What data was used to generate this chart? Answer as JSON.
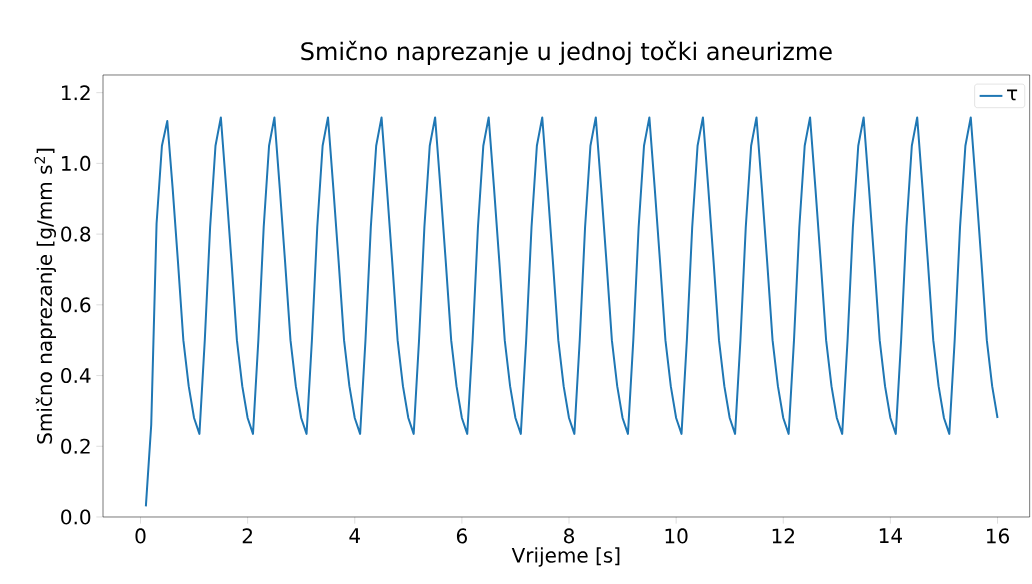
{
  "chart_data": {
    "type": "line",
    "title": "Smično naprezanje u jednoj točki aneurizme",
    "xlabel": "Vrijeme [s]",
    "ylabel": "Smično naprezanje [g/mm s$^{2}$]",
    "xlim": [
      -0.7,
      16.6
    ],
    "ylim": [
      0,
      1.25
    ],
    "xticks": [
      0,
      2,
      4,
      6,
      8,
      10,
      12,
      14,
      16
    ],
    "yticks": [
      {
        "value": 0,
        "label": "0.0"
      },
      {
        "value": 0.2,
        "label": "0.2"
      },
      {
        "value": 0.4,
        "label": "0.4"
      },
      {
        "value": 0.6,
        "label": "0.6"
      },
      {
        "value": 0.8,
        "label": "0.8"
      },
      {
        "value": 1.0,
        "label": "1.0"
      },
      {
        "value": 1.2,
        "label": "1.2"
      }
    ],
    "grid": false,
    "legend": "top right",
    "x": [
      0.1,
      0.2,
      0.3,
      0.4,
      0.5,
      0.6,
      0.7,
      0.8,
      0.9,
      1.0,
      1.1,
      1.2,
      1.3,
      1.4,
      1.5,
      1.6,
      1.7,
      1.8,
      1.9,
      2.0,
      2.1,
      2.2,
      2.3,
      2.4,
      2.5,
      2.6,
      2.7,
      2.8,
      2.9,
      3.0,
      3.1,
      3.2,
      3.3,
      3.4,
      3.5,
      3.6,
      3.7,
      3.8,
      3.9,
      4.0,
      4.1,
      4.2,
      4.3,
      4.4,
      4.5,
      4.6,
      4.7,
      4.8,
      4.9,
      5.0,
      5.1,
      5.2,
      5.3,
      5.4,
      5.5,
      5.6,
      5.7,
      5.8,
      5.9,
      6.0,
      6.1,
      6.2,
      6.3,
      6.4,
      6.5,
      6.6,
      6.7,
      6.8,
      6.9,
      7.0,
      7.1,
      7.2,
      7.3,
      7.4,
      7.5,
      7.6,
      7.7,
      7.8,
      7.9,
      8.0,
      8.1,
      8.2,
      8.3,
      8.4,
      8.5,
      8.6,
      8.7,
      8.8,
      8.9,
      9.0,
      9.1,
      9.2,
      9.3,
      9.4,
      9.5,
      9.6,
      9.7,
      9.8,
      9.9,
      10.0,
      10.1,
      10.2,
      10.3,
      10.4,
      10.5,
      10.6,
      10.7,
      10.8,
      10.9,
      11.0,
      11.1,
      11.2,
      11.3,
      11.4,
      11.5,
      11.6,
      11.7,
      11.8,
      11.9,
      12.0,
      12.1,
      12.2,
      12.3,
      12.4,
      12.5,
      12.6,
      12.7,
      12.8,
      12.9,
      13.0,
      13.1,
      13.2,
      13.3,
      13.4,
      13.5,
      13.6,
      13.7,
      13.8,
      13.9,
      14.0,
      14.1,
      14.2,
      14.3,
      14.4,
      14.5,
      14.6,
      14.7,
      14.8,
      14.9,
      15.0,
      15.1,
      15.2,
      15.3,
      15.4,
      15.5,
      15.6,
      15.7,
      15.8,
      15.9,
      16.0
    ],
    "series": [
      {
        "name": "τ",
        "color": "#1f77b4",
        "values": [
          0.03,
          0.26,
          0.83,
          1.05,
          1.12,
          0.93,
          0.72,
          0.5,
          0.37,
          0.28,
          0.235,
          0.5,
          0.82,
          1.05,
          1.13,
          0.93,
          0.72,
          0.5,
          0.37,
          0.28,
          0.235,
          0.5,
          0.82,
          1.05,
          1.13,
          0.93,
          0.72,
          0.5,
          0.37,
          0.28,
          0.235,
          0.5,
          0.82,
          1.05,
          1.13,
          0.93,
          0.72,
          0.5,
          0.37,
          0.28,
          0.235,
          0.5,
          0.82,
          1.05,
          1.13,
          0.93,
          0.72,
          0.5,
          0.37,
          0.28,
          0.235,
          0.5,
          0.82,
          1.05,
          1.13,
          0.93,
          0.72,
          0.5,
          0.37,
          0.28,
          0.235,
          0.5,
          0.82,
          1.05,
          1.13,
          0.93,
          0.72,
          0.5,
          0.37,
          0.28,
          0.235,
          0.5,
          0.82,
          1.05,
          1.13,
          0.93,
          0.72,
          0.5,
          0.37,
          0.28,
          0.235,
          0.5,
          0.82,
          1.05,
          1.13,
          0.93,
          0.72,
          0.5,
          0.37,
          0.28,
          0.235,
          0.5,
          0.82,
          1.05,
          1.13,
          0.93,
          0.72,
          0.5,
          0.37,
          0.28,
          0.235,
          0.5,
          0.82,
          1.05,
          1.13,
          0.93,
          0.72,
          0.5,
          0.37,
          0.28,
          0.235,
          0.5,
          0.82,
          1.05,
          1.13,
          0.93,
          0.72,
          0.5,
          0.37,
          0.28,
          0.235,
          0.5,
          0.82,
          1.05,
          1.13,
          0.93,
          0.72,
          0.5,
          0.37,
          0.28,
          0.235,
          0.5,
          0.82,
          1.05,
          1.13,
          0.93,
          0.72,
          0.5,
          0.37,
          0.28,
          0.235,
          0.5,
          0.82,
          1.05,
          1.13,
          0.93,
          0.72,
          0.5,
          0.37,
          0.28,
          0.235,
          0.5,
          0.82,
          1.05,
          1.13,
          0.93,
          0.72,
          0.5,
          0.37,
          0.28
        ]
      }
    ]
  }
}
